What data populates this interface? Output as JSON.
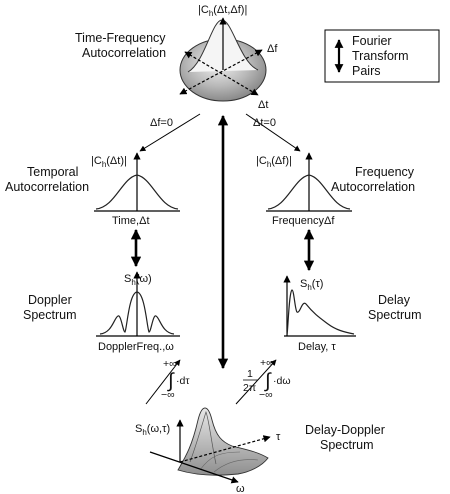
{
  "legend": {
    "line1": "Fourier",
    "line2": "Transform",
    "line3": "Pairs"
  },
  "tf_autocorr": {
    "title_line1": "Time-Frequency",
    "title_line2": "Autocorrelation",
    "func": "|C",
    "func_sub": "h",
    "func_args": "(Δt,Δf)|",
    "axis_f": "Δf",
    "axis_t": "Δt"
  },
  "branches": {
    "left": "Δf=0",
    "right": "Δt=0"
  },
  "temporal": {
    "title_line1": "Temporal",
    "title_line2": "Autocorrelation",
    "func": "|C",
    "func_sub": "h",
    "func_args": "(Δt)|",
    "xlabel": "Time,Δt"
  },
  "frequency": {
    "title_line1": "Frequency",
    "title_line2": "Autocorrelation",
    "func": "|C",
    "func_sub": "h",
    "func_args": "(Δf)|",
    "xlabel": "FrequencyΔf"
  },
  "doppler": {
    "title_line1": "Doppler",
    "title_line2": "Spectrum",
    "func": "S",
    "func_sub": "h",
    "func_args": "(ω)",
    "xlabel": "DopplerFreq.,ω"
  },
  "delay": {
    "title_line1": "Delay",
    "title_line2": "Spectrum",
    "func": "S",
    "func_sub": "h",
    "func_args": "(τ)",
    "xlabel": "Delay, τ"
  },
  "integrals": {
    "left_upper": "+∞",
    "left_lower": "−∞",
    "left_body": "·dτ",
    "right_frac_num": "1",
    "right_frac_den": "2π",
    "right_upper": "+∞",
    "right_lower": "−∞",
    "right_body": "·dω"
  },
  "delay_doppler": {
    "title_line1": "Delay-Doppler",
    "title_line2": "Spectrum",
    "func": "S",
    "func_sub": "h",
    "func_args": "(ω,τ)",
    "axis_tau": "τ",
    "axis_omega": "ω"
  }
}
